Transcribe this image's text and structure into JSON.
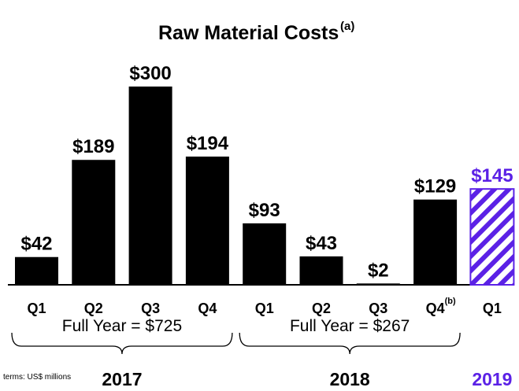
{
  "chart_data": {
    "type": "bar",
    "title": "Raw Material Costs",
    "title_superscript": "(a)",
    "unit_note": "terms: US$ millions",
    "ylim": [
      0,
      300
    ],
    "grid": false,
    "colors": {
      "bar": "#000000",
      "highlight": "#5b21e6",
      "highlight_bg": "#ffffff"
    },
    "bars": [
      {
        "category": "Q1",
        "value": 42,
        "label": "$42",
        "year": "2017"
      },
      {
        "category": "Q2",
        "value": 189,
        "label": "$189",
        "year": "2017"
      },
      {
        "category": "Q3",
        "value": 300,
        "label": "$300",
        "year": "2017"
      },
      {
        "category": "Q4",
        "value": 194,
        "label": "$194",
        "year": "2017"
      },
      {
        "category": "Q1",
        "value": 93,
        "label": "$93",
        "year": "2018"
      },
      {
        "category": "Q2",
        "value": 43,
        "label": "$43",
        "year": "2018"
      },
      {
        "category": "Q3",
        "value": 2,
        "label": "$2",
        "year": "2018"
      },
      {
        "category": "Q4",
        "category_superscript": "(b)",
        "value": 129,
        "label": "$129",
        "year": "2018"
      },
      {
        "category": "Q1",
        "value": 145,
        "label": "$145",
        "year": "2019",
        "highlight": true
      }
    ],
    "groups": [
      {
        "year": "2017",
        "full_year_label": "Full Year = $725"
      },
      {
        "year": "2018",
        "full_year_label": "Full Year = $267"
      },
      {
        "year": "2019",
        "full_year_label": ""
      }
    ]
  }
}
